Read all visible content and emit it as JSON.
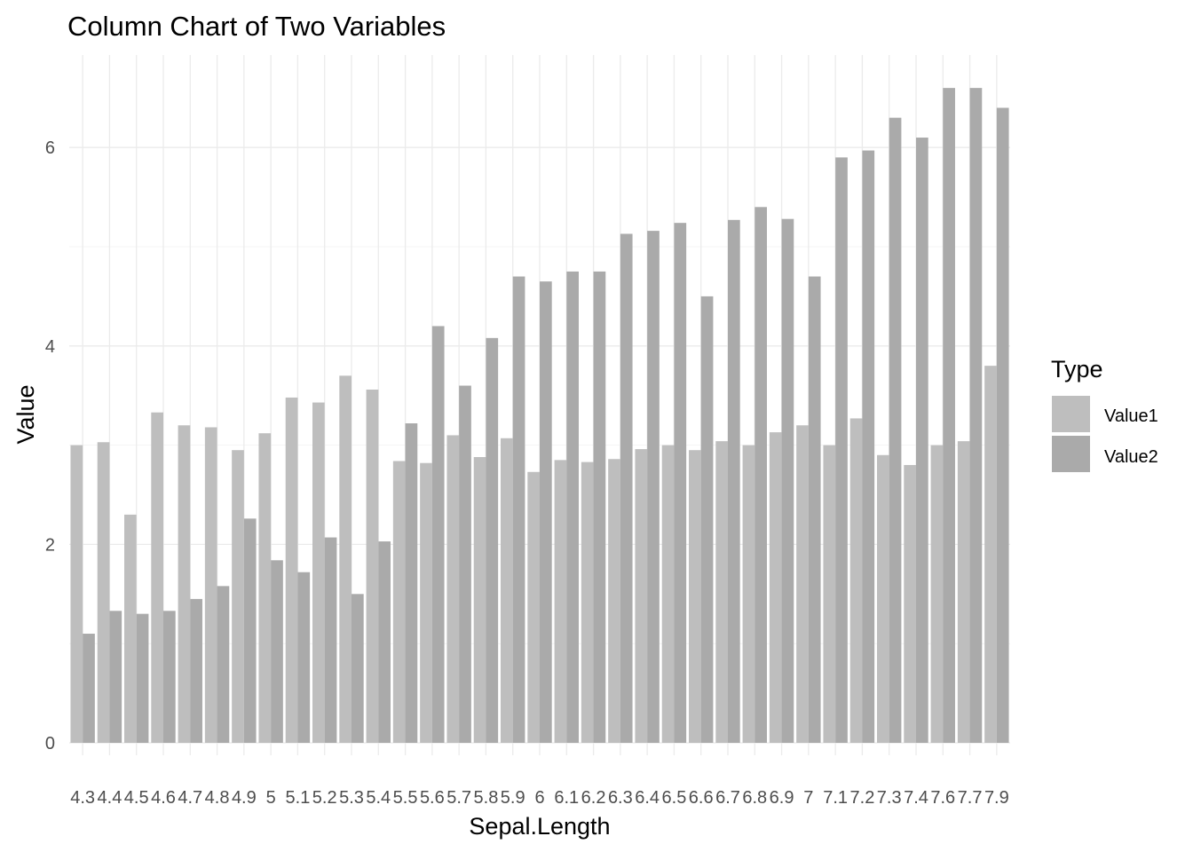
{
  "chart_data": {
    "type": "bar",
    "title": "Column Chart of Two Variables",
    "xlabel": "Sepal.Length",
    "ylabel": "Value",
    "ylim": [
      0,
      6.9
    ],
    "yticks": [
      0,
      2,
      4,
      6
    ],
    "grid": true,
    "legend": {
      "title": "Type",
      "placement": "right",
      "entries": [
        "Value1",
        "Value2"
      ]
    },
    "categories": [
      "4.3",
      "4.4",
      "4.5",
      "4.6",
      "4.7",
      "4.8",
      "4.9",
      "5",
      "5.1",
      "5.2",
      "5.3",
      "5.4",
      "5.5",
      "5.6",
      "5.7",
      "5.8",
      "5.9",
      "6",
      "6.1",
      "6.2",
      "6.3",
      "6.4",
      "6.5",
      "6.6",
      "6.7",
      "6.8",
      "6.9",
      "7",
      "7.1",
      "7.2",
      "7.3",
      "7.4",
      "7.6",
      "7.7",
      "7.9"
    ],
    "series": [
      {
        "name": "Value1",
        "color": "#bebebe",
        "values": [
          3.0,
          3.03,
          2.3,
          3.33,
          3.2,
          3.18,
          2.95,
          3.12,
          3.48,
          3.43,
          3.7,
          3.56,
          2.84,
          2.82,
          3.1,
          2.88,
          3.07,
          2.73,
          2.85,
          2.83,
          2.86,
          2.96,
          3.0,
          2.95,
          3.04,
          3.0,
          3.13,
          3.2,
          3.0,
          3.27,
          2.9,
          2.8,
          3.0,
          3.04,
          3.8
        ]
      },
      {
        "name": "Value2",
        "color": "#aaaaaa",
        "values": [
          1.1,
          1.33,
          1.3,
          1.33,
          1.45,
          1.58,
          2.26,
          1.84,
          1.72,
          2.07,
          1.5,
          2.03,
          3.22,
          4.2,
          3.6,
          4.08,
          4.7,
          4.65,
          4.75,
          4.75,
          5.13,
          5.16,
          5.24,
          4.5,
          5.27,
          5.4,
          5.28,
          4.7,
          5.9,
          5.97,
          6.3,
          6.1,
          6.6,
          6.6,
          6.4
        ]
      }
    ]
  }
}
